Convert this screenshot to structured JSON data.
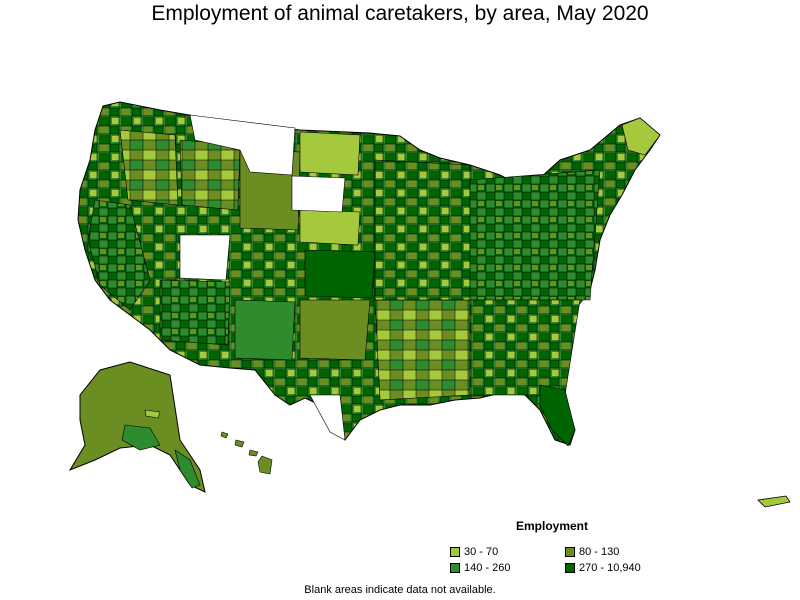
{
  "title": "Employment of animal caretakers, by area, May 2020",
  "legend": {
    "title": "Employment",
    "items": [
      {
        "label": "30 - 70",
        "color": "#a5c93d"
      },
      {
        "label": "80 - 130",
        "color": "#6b8e23"
      },
      {
        "label": "140 - 260",
        "color": "#2e8b2e"
      },
      {
        "label": "270 - 10,940",
        "color": "#006400"
      }
    ]
  },
  "footnote": "Blank areas indicate data not available.",
  "map": {
    "regions": [
      "contiguous-us",
      "alaska",
      "hawaii",
      "puerto-rico"
    ],
    "no_data_color": "#ffffff",
    "border_color": "#000000"
  }
}
